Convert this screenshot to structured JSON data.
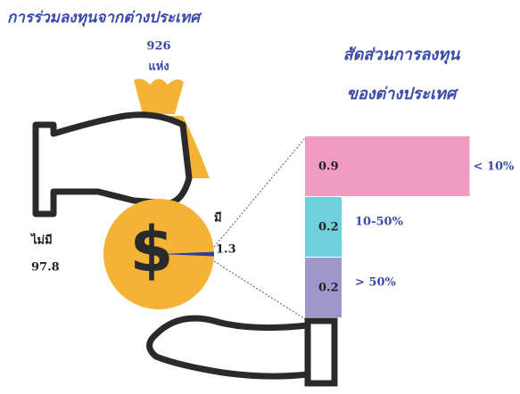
{
  "chart_data": [
    {
      "type": "pie",
      "title": "การร่วมลงทุนจากต่างประเทศ",
      "total": 926,
      "total_unit": "แห่ง",
      "categories": [
        "ไม่มี",
        "มี"
      ],
      "values": [
        97.8,
        1.3
      ],
      "colors": [
        "#f5b335",
        "#2f3f9a"
      ]
    },
    {
      "type": "bar",
      "title_lines": [
        "สัดส่วนการลงทุน",
        "ของต่างประเทศ"
      ],
      "categories": [
        "< 10%",
        "10-50%",
        "> 50%"
      ],
      "values": [
        0.9,
        0.2,
        0.2
      ],
      "colors": [
        "#f29bc1",
        "#6fcfdc",
        "#9f97cc"
      ]
    }
  ]
}
